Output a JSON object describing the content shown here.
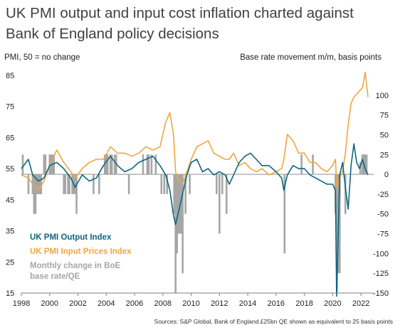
{
  "title_lines": [
    "UK PMI output and input cost inflation charted against",
    "Bank of England policy decisions"
  ],
  "axes": {
    "left_title": "PMI, 50 = no change",
    "right_title": "Base rate movement m/m, basis points"
  },
  "source": "Sources: S&P Global, Bank of England.£25bn QE shown as equivalent to 25 basis points",
  "colors": {
    "output": "#0E6680",
    "input": "#F0A640",
    "bars": "#A6A6A6",
    "zero_line": "#A6A6A6"
  },
  "chart_data": {
    "type": "line",
    "left_axis": {
      "ylim": [
        15,
        85
      ],
      "ticks": [
        15,
        25,
        35,
        45,
        55,
        65,
        75,
        85
      ]
    },
    "right_axis": {
      "ylim": [
        -150,
        125
      ],
      "ticks": [
        -150,
        -125,
        -100,
        -75,
        -50,
        -25,
        0,
        25,
        50,
        75,
        100
      ]
    },
    "x_axis": {
      "xlim": [
        1998,
        2022.9
      ],
      "ticks": [
        1998,
        2000,
        2002,
        2004,
        2006,
        2008,
        2010,
        2012,
        2014,
        2016,
        2018,
        2020,
        2022
      ]
    },
    "series": [
      {
        "name": "UK PMI Output Index",
        "axis": "left",
        "x": [
          1998,
          1998.5,
          1998.8,
          1999.2,
          1999.6,
          2000,
          2000.5,
          2001,
          2001.5,
          2001.8,
          2002.3,
          2002.8,
          2003.3,
          2003.8,
          2004.3,
          2004.8,
          2005.3,
          2005.8,
          2006.3,
          2006.8,
          2007.3,
          2007.8,
          2008.2,
          2008.5,
          2008.75,
          2008.9,
          2009.1,
          2009.4,
          2009.7,
          2010,
          2010.4,
          2010.8,
          2011.2,
          2011.6,
          2012,
          2012.4,
          2012.7,
          2013,
          2013.4,
          2013.8,
          2014.2,
          2014.6,
          2015,
          2015.5,
          2016,
          2016.4,
          2016.55,
          2016.8,
          2017.2,
          2017.6,
          2018,
          2018.4,
          2018.8,
          2019.2,
          2019.6,
          2020,
          2020.2,
          2020.28,
          2020.36,
          2020.5,
          2020.7,
          2020.9,
          2021.1,
          2021.3,
          2021.5,
          2021.7,
          2021.9,
          2022.1,
          2022.3,
          2022.5
        ],
        "y": [
          55,
          58,
          53,
          51,
          52,
          56,
          57,
          55,
          52,
          49,
          53,
          51,
          52,
          56,
          59,
          56,
          54,
          55,
          57,
          58,
          59,
          56,
          53,
          48,
          40,
          37,
          41,
          47,
          53,
          57,
          58,
          54,
          55,
          53,
          54,
          53,
          50,
          53,
          57,
          59,
          60,
          58,
          56,
          56,
          54,
          52,
          48,
          53,
          56,
          55,
          55,
          53,
          52,
          51,
          50,
          50,
          48,
          14,
          28,
          53,
          57,
          49,
          42,
          56,
          63,
          57,
          55,
          58,
          55,
          53
        ]
      },
      {
        "name": "UK PMI Input Prices Index",
        "axis": "left",
        "x": [
          1998,
          1998.5,
          1998.8,
          1999.2,
          1999.6,
          2000,
          2000.5,
          2001,
          2001.5,
          2001.8,
          2002.3,
          2002.8,
          2003.3,
          2003.8,
          2004.3,
          2004.8,
          2005.3,
          2005.8,
          2006.3,
          2006.8,
          2007.3,
          2007.8,
          2008.2,
          2008.5,
          2008.75,
          2008.9,
          2009.1,
          2009.4,
          2009.7,
          2010,
          2010.4,
          2010.8,
          2011.2,
          2011.6,
          2012,
          2012.4,
          2012.7,
          2013,
          2013.4,
          2013.8,
          2014.2,
          2014.6,
          2015,
          2015.5,
          2016,
          2016.4,
          2016.55,
          2016.8,
          2017.2,
          2017.6,
          2018,
          2018.4,
          2018.8,
          2019.2,
          2019.6,
          2020,
          2020.2,
          2020.28,
          2020.36,
          2020.5,
          2020.7,
          2020.9,
          2021.1,
          2021.3,
          2021.5,
          2021.7,
          2021.9,
          2022.1,
          2022.3,
          2022.5
        ],
        "y": [
          53,
          52,
          50,
          48,
          51,
          56,
          61,
          57,
          54,
          52,
          55,
          57,
          58,
          58,
          62,
          60,
          60,
          59,
          60,
          62,
          61,
          62,
          70,
          73,
          66,
          54,
          51,
          50,
          54,
          58,
          62,
          63,
          64,
          60,
          59,
          58,
          58,
          60,
          56,
          57,
          55,
          54,
          55,
          53,
          54,
          55,
          58,
          66,
          64,
          60,
          60,
          57,
          57,
          55,
          54,
          56,
          58,
          50,
          49,
          52,
          54,
          60,
          69,
          76,
          78,
          79,
          80,
          81,
          86,
          78
        ]
      },
      {
        "name": "Monthly change in BoE base rate/QE",
        "type": "bar",
        "axis": "right",
        "x": [
          1998.1,
          1998.5,
          1998.8,
          1998.9,
          1999.0,
          1999.1,
          1999.2,
          1999.3,
          1999.4,
          1999.6,
          1999.7,
          2000.0,
          2000.1,
          2000.2,
          2000.3,
          2001.0,
          2001.1,
          2001.3,
          2001.4,
          2001.6,
          2001.7,
          2001.8,
          2001.9,
          2003.1,
          2003.5,
          2003.9,
          2004.0,
          2004.1,
          2004.3,
          2004.4,
          2004.6,
          2004.7,
          2005.6,
          2006.6,
          2006.9,
          2007.0,
          2007.2,
          2007.5,
          2007.9,
          2008.1,
          2008.3,
          2008.8,
          2008.9,
          2009.0,
          2009.1,
          2009.2,
          2009.3,
          2009.4,
          2009.6,
          2009.9,
          2011.8,
          2012.0,
          2012.2,
          2012.5,
          2016.6,
          2017.8,
          2018.6,
          2020.2,
          2020.3,
          2020.4,
          2020.5,
          2020.9,
          2021.95,
          2022.1,
          2022.2,
          2022.3,
          2022.4
        ],
        "y": [
          25,
          -25,
          -25,
          -50,
          -50,
          -25,
          -25,
          -25,
          -25,
          25,
          25,
          25,
          25,
          25,
          25,
          -25,
          -25,
          -25,
          -25,
          -25,
          -25,
          -25,
          -50,
          -25,
          -25,
          25,
          25,
          25,
          25,
          25,
          25,
          25,
          -25,
          25,
          25,
          25,
          25,
          25,
          -25,
          -25,
          -25,
          -50,
          -150,
          -100,
          -75,
          -75,
          -75,
          -125,
          -50,
          -25,
          -25,
          -75,
          -25,
          -50,
          -100,
          25,
          25,
          -50,
          -150,
          -125,
          -125,
          -50,
          15,
          25,
          25,
          25,
          25
        ]
      }
    ]
  }
}
